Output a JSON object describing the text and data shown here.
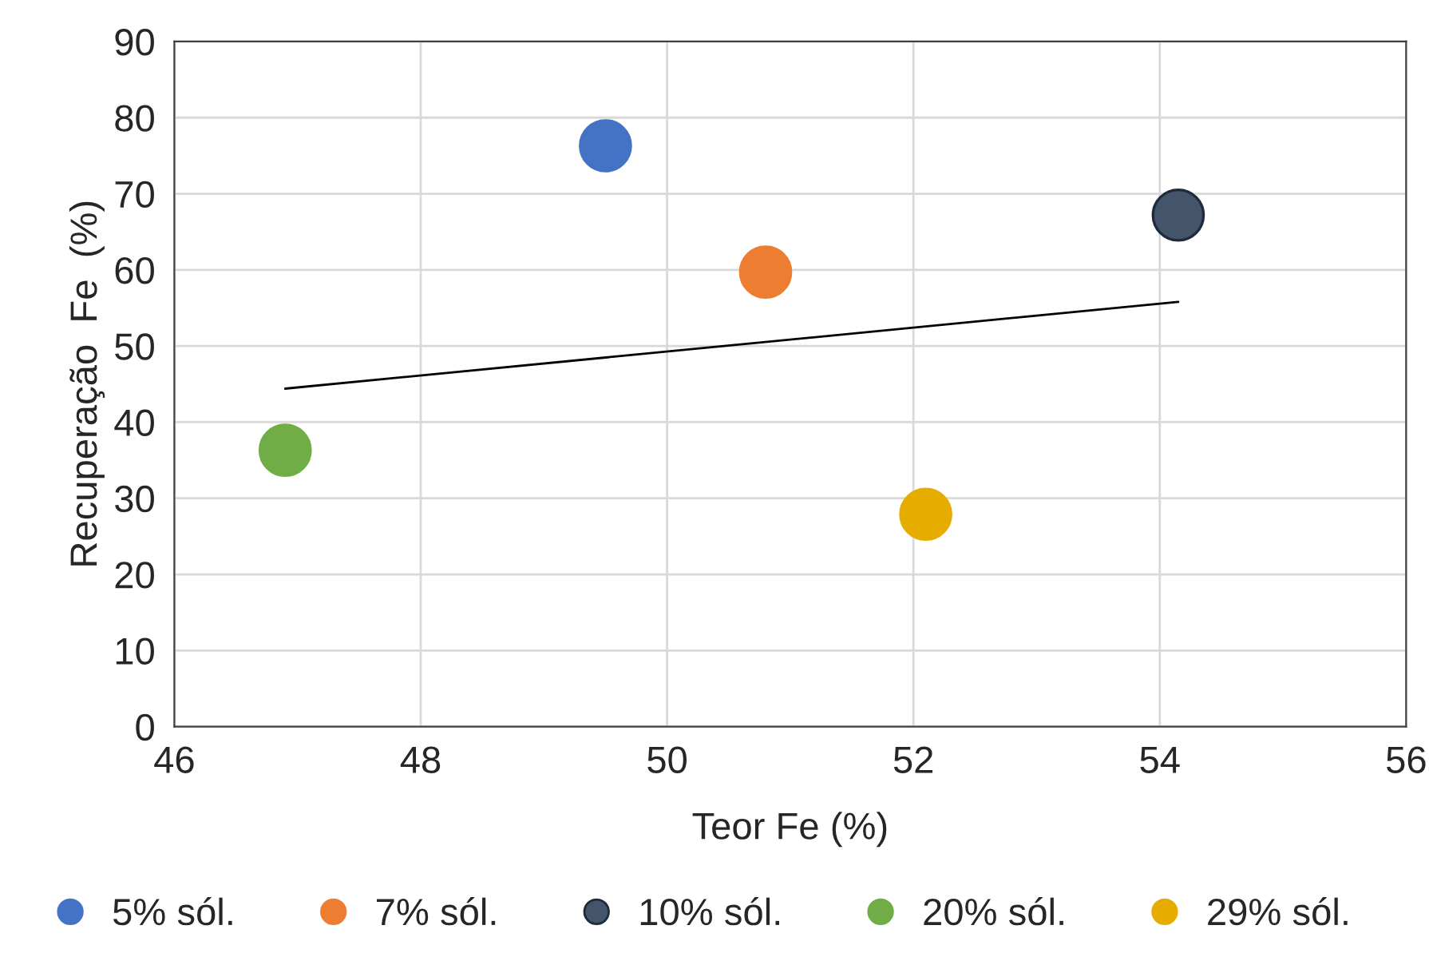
{
  "chart_data": {
    "type": "scatter",
    "xlabel": "Teor Fe (%)",
    "ylabel": "Recuperação  Fe  (%)",
    "xlim": [
      46,
      56
    ],
    "xticks": [
      46,
      48,
      50,
      52,
      54,
      56
    ],
    "ylim": [
      0,
      90
    ],
    "yticks": [
      0,
      10,
      20,
      30,
      40,
      50,
      60,
      70,
      80,
      90
    ],
    "grid": true,
    "legend": "bottom",
    "marker": "circle",
    "series": [
      {
        "name": "5% sól.",
        "color": "#4472c4",
        "x": [
          49.5
        ],
        "values": [
          76.3
        ]
      },
      {
        "name": "7% sól.",
        "color": "#ed7d31",
        "x": [
          50.8
        ],
        "values": [
          59.7
        ]
      },
      {
        "name": "10% sól.",
        "color": "#44546a",
        "x": [
          54.15
        ],
        "values": [
          67.2
        ]
      },
      {
        "name": "20% sól.",
        "color": "#70ad47",
        "x": [
          46.9
        ],
        "values": [
          36.3
        ]
      },
      {
        "name": "29% sól.",
        "color": "#e6ac00",
        "x": [
          52.1
        ],
        "values": [
          27.9
        ]
      },
      {
        "type": "line",
        "marker": "none",
        "color": "#000000",
        "x": [
          46.9,
          54.15
        ],
        "values": [
          44.4,
          55.8
        ]
      }
    ]
  }
}
